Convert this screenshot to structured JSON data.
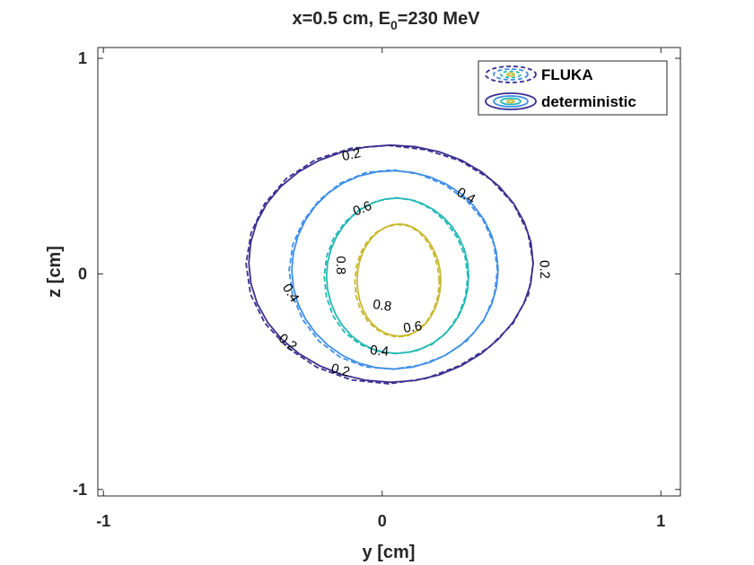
{
  "chart_data": {
    "type": "contour",
    "title_main": "x=0.5 cm, E",
    "title_sub": "0",
    "title_rest": "=230 MeV",
    "xlabel": "y [cm]",
    "ylabel": "z [cm]",
    "xlim": [
      -1.02,
      1.07
    ],
    "ylim": [
      -1.03,
      1.05
    ],
    "xticks": [
      -1,
      0,
      1
    ],
    "xtick_labels": [
      "-1",
      "0",
      "1"
    ],
    "yticks": [
      -1,
      0,
      1
    ],
    "ytick_labels": [
      "-1",
      "0",
      "1"
    ],
    "grid": false,
    "legend_position": "top-right",
    "series": [
      {
        "name": "FLUKA",
        "style": "dashed"
      },
      {
        "name": "deterministic",
        "style": "solid"
      }
    ],
    "contours": [
      {
        "level": 0.2,
        "label": "0.2",
        "color": "#3b2f8f",
        "center": [
          0.03,
          0.05
        ],
        "semi_axes": [
          0.51,
          0.55
        ]
      },
      {
        "level": 0.4,
        "label": "0.4",
        "color": "#3f8fe8",
        "center": [
          0.045,
          0.02
        ],
        "semi_axes": [
          0.37,
          0.46
        ]
      },
      {
        "level": 0.6,
        "label": "0.6",
        "color": "#23b9b5",
        "center": [
          0.055,
          -0.01
        ],
        "semi_axes": [
          0.255,
          0.36
        ]
      },
      {
        "level": 0.8,
        "label": "0.8",
        "color": "#c9b82e",
        "center": [
          0.06,
          -0.03
        ],
        "semi_axes": [
          0.15,
          0.26
        ]
      }
    ],
    "contour_labels": [
      {
        "text": "0.2",
        "y": -0.11,
        "z": 0.55,
        "angle": -12
      },
      {
        "text": "0.2",
        "y": 0.58,
        "z": 0.02,
        "angle": 88
      },
      {
        "text": "0.2",
        "y": -0.34,
        "z": -0.32,
        "angle": 38
      },
      {
        "text": "0.2",
        "y": -0.15,
        "z": -0.45,
        "angle": 14
      },
      {
        "text": "0.4",
        "y": 0.3,
        "z": 0.36,
        "angle": 30
      },
      {
        "text": "0.4",
        "y": -0.33,
        "z": -0.09,
        "angle": 58
      },
      {
        "text": "0.4",
        "y": -0.01,
        "z": -0.36,
        "angle": 5
      },
      {
        "text": "0.6",
        "y": -0.07,
        "z": 0.3,
        "angle": -22
      },
      {
        "text": "0.6",
        "y": 0.11,
        "z": -0.25,
        "angle": -8
      },
      {
        "text": "0.8",
        "y": -0.15,
        "z": 0.04,
        "angle": 90
      },
      {
        "text": "0.8",
        "y": 0.0,
        "z": -0.15,
        "angle": 8
      }
    ]
  }
}
